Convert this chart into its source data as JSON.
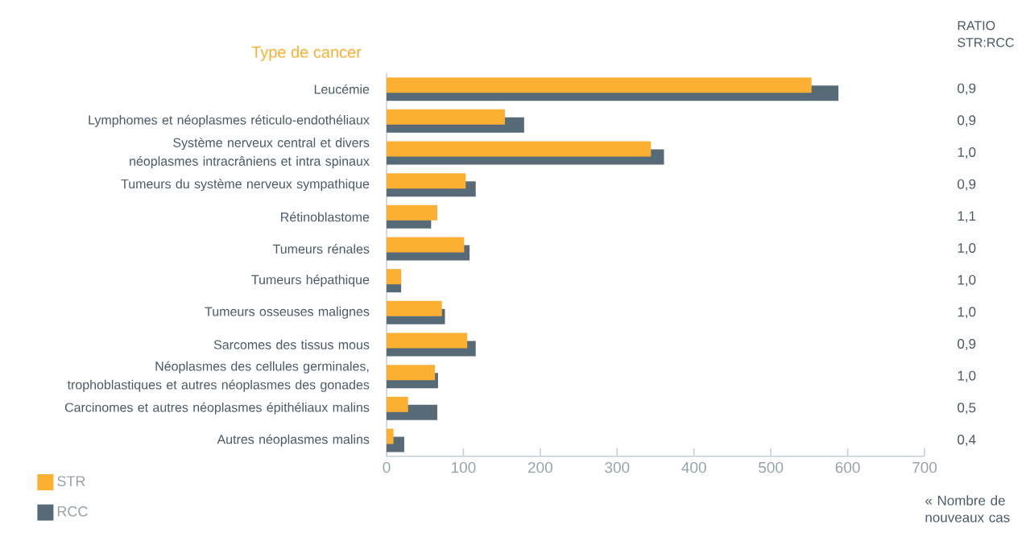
{
  "chart_data": {
    "type": "bar",
    "orientation": "horizontal",
    "ylabel": "Type de cancer",
    "xlabel": "« Nombre de nouveaux cas",
    "categories": [
      "Leucémie",
      "Lymphomes et néoplasmes réticulo-endothéliaux",
      "Système nerveux central et divers néoplasmes intracrâniens et intra spinaux",
      "Tumeurs du système nerveux sympathique",
      "Rétinoblastome",
      "Tumeurs rénales",
      "Tumeurs hépathique",
      "Tumeurs osseuses malignes",
      "Sarcomes des tissus mous",
      "Néoplasmes des cellules germinales, trophoblastiques et autres néoplasmes des gonades",
      "Carcinomes et autres néoplasmes épithéliaux malins",
      "Autres néoplasmes malins"
    ],
    "series": [
      {
        "name": "STR",
        "color": "#fbb034",
        "values": [
          553,
          154,
          344,
          103,
          66,
          101,
          19,
          72,
          105,
          63,
          28,
          9
        ]
      },
      {
        "name": "RCC",
        "color": "#566a77",
        "values": [
          588,
          179,
          361,
          116,
          58,
          108,
          19,
          76,
          116,
          67,
          66,
          23
        ]
      }
    ],
    "xlim": [
      0,
      700
    ],
    "xticks": [
      0,
      100,
      200,
      300,
      400,
      500,
      600,
      700
    ],
    "legend": "bottom left",
    "annotations": [
      "RATIO STR:RCC",
      "0,9",
      "0,9",
      "1,0",
      "0,9",
      "1,1",
      "1,0",
      "1,0",
      "1,0",
      "0,9",
      "1,0",
      "0,5",
      "0,4"
    ]
  }
}
